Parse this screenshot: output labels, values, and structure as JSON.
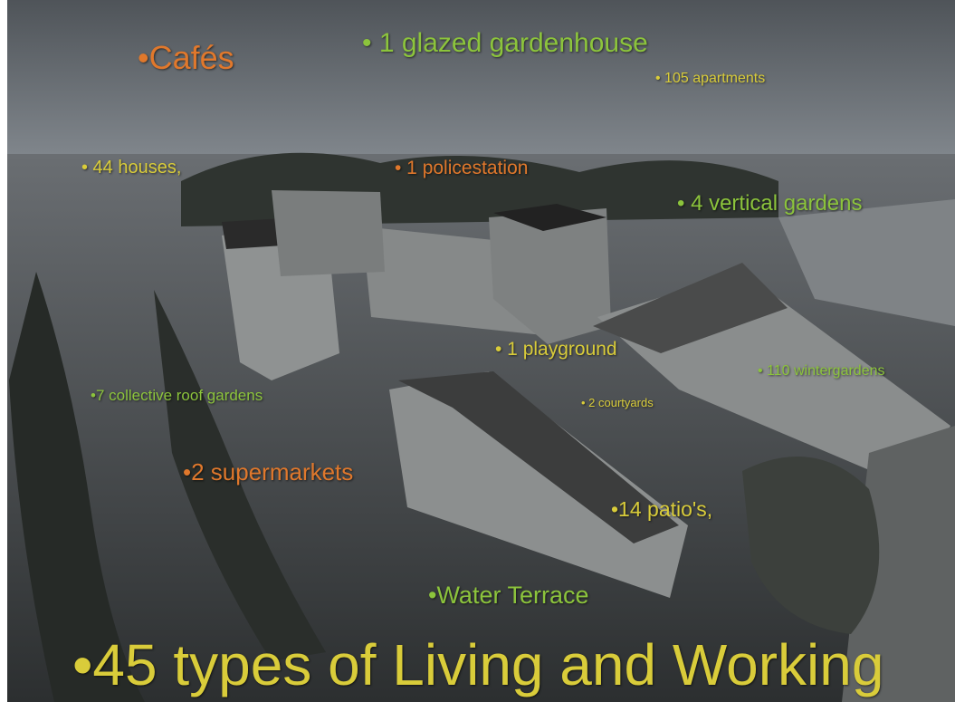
{
  "labels": [
    "•Cafés",
    "• 1 glazed gardenhouse",
    "• 105 apartments",
    "• 44 houses,",
    "• 1 policestation",
    "• 4 vertical gardens",
    "• 1 playground",
    "• 110 wintergardens",
    "•7 collective roof gardens",
    "• 2 courtyards",
    "•2 supermarkets",
    "•14 patio's,",
    "•Water Terrace",
    "•45 types of Living and Working"
  ]
}
